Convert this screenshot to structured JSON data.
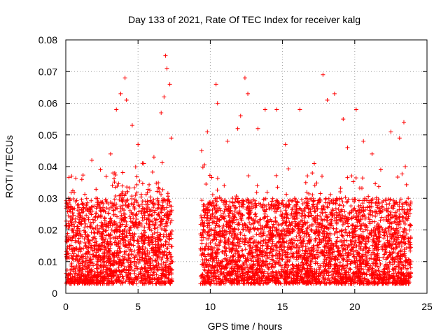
{
  "chart_data": {
    "type": "scatter",
    "title": "Day 133 of 2021, Rate Of TEC Index for receiver kalg",
    "xlabel": "GPS time / hours",
    "ylabel": "ROTI / TECUs",
    "xlim": [
      0,
      25
    ],
    "ylim": [
      0,
      0.08
    ],
    "xticks": [
      0,
      5,
      10,
      15,
      20,
      25
    ],
    "yticks": [
      0,
      0.01,
      0.02,
      0.03,
      0.04,
      0.05,
      0.06,
      0.07,
      0.08
    ],
    "xtick_labels": [
      "0",
      "5",
      "10",
      "15",
      "20",
      "25"
    ],
    "ytick_labels": [
      "0",
      "0.01",
      "0.02",
      "0.03",
      "0.04",
      "0.05",
      "0.06",
      "0.07",
      "0.08"
    ],
    "grid": true,
    "marker": "+",
    "series_color": "#ff0000",
    "series": [
      {
        "name": "ROTI",
        "coverage_hours": [
          [
            0,
            7.4
          ],
          [
            9.3,
            23.9
          ]
        ],
        "typical_range": [
          0.003,
          0.03
        ],
        "points": [
          [
            0.2,
            0.03
          ],
          [
            0.4,
            0.037
          ],
          [
            1.2,
            0.028
          ],
          [
            1.8,
            0.042
          ],
          [
            2.4,
            0.039
          ],
          [
            3.1,
            0.044
          ],
          [
            3.5,
            0.058
          ],
          [
            3.8,
            0.063
          ],
          [
            4.1,
            0.068
          ],
          [
            4.2,
            0.061
          ],
          [
            4.6,
            0.053
          ],
          [
            5.0,
            0.047
          ],
          [
            5.4,
            0.041
          ],
          [
            6.1,
            0.043
          ],
          [
            6.6,
            0.057
          ],
          [
            6.8,
            0.062
          ],
          [
            6.9,
            0.075
          ],
          [
            7.0,
            0.071
          ],
          [
            7.2,
            0.066
          ],
          [
            7.3,
            0.049
          ],
          [
            9.4,
            0.045
          ],
          [
            9.8,
            0.051
          ],
          [
            10.4,
            0.066
          ],
          [
            10.5,
            0.06
          ],
          [
            11.2,
            0.048
          ],
          [
            11.9,
            0.052
          ],
          [
            12.1,
            0.056
          ],
          [
            12.4,
            0.068
          ],
          [
            12.6,
            0.063
          ],
          [
            13.3,
            0.052
          ],
          [
            13.8,
            0.058
          ],
          [
            14.6,
            0.058
          ],
          [
            15.2,
            0.047
          ],
          [
            16.2,
            0.058
          ],
          [
            17.2,
            0.041
          ],
          [
            17.8,
            0.069
          ],
          [
            18.1,
            0.061
          ],
          [
            18.6,
            0.063
          ],
          [
            19.2,
            0.055
          ],
          [
            19.5,
            0.046
          ],
          [
            20.1,
            0.058
          ],
          [
            20.6,
            0.048
          ],
          [
            21.2,
            0.044
          ],
          [
            21.8,
            0.039
          ],
          [
            22.5,
            0.051
          ],
          [
            23.1,
            0.049
          ],
          [
            23.4,
            0.054
          ],
          [
            23.5,
            0.04
          ],
          [
            23.7,
            0.03
          ]
        ]
      }
    ]
  }
}
